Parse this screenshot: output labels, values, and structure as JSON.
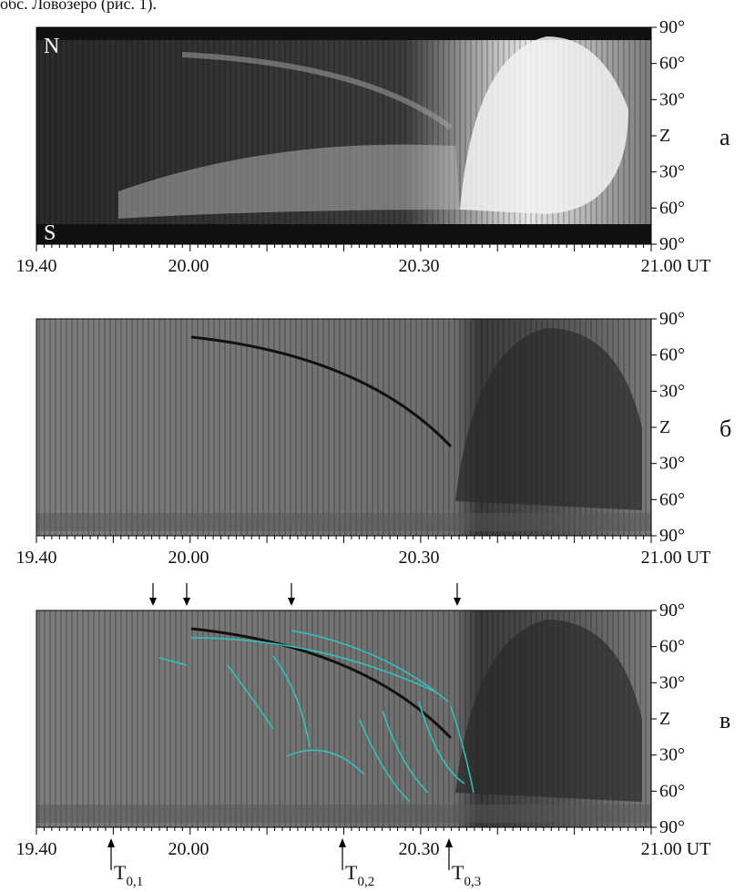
{
  "caption_fragment": "обс. Ловозеро (рис. 1).",
  "panels": [
    {
      "label": "а",
      "north": "N",
      "south": "S"
    },
    {
      "label": "б"
    },
    {
      "label": "в"
    }
  ],
  "y_axis_labels": [
    "90°",
    "60°",
    "30°",
    "Z",
    "30°",
    "60°",
    "90°"
  ],
  "x_axis_labels": [
    "19.40",
    "20.00",
    "20.30",
    "21.00 UT"
  ],
  "markers": [
    {
      "base": "T",
      "sub": "0,1"
    },
    {
      "base": "T",
      "sub": "0,2"
    },
    {
      "base": "T",
      "sub": "0,3"
    }
  ]
}
